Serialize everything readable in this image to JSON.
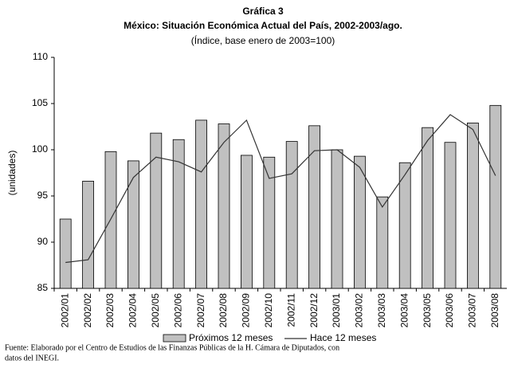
{
  "chart_data": {
    "type": "bar-line",
    "title": "Gráfica 3",
    "subtitle": "México: Situación Económica Actual del País, 2002-2003/ago.",
    "note": "(Índice, base enero de 2003=100)",
    "y_label": "(unidades)",
    "categories": [
      "2002/01",
      "2002/02",
      "2002/03",
      "2002/04",
      "2002/05",
      "2002/06",
      "2002/07",
      "2002/08",
      "2002/09",
      "2002/10",
      "2002/11",
      "2002/12",
      "2003/01",
      "2003/02",
      "2003/03",
      "2003/04",
      "2003/05",
      "2003/06",
      "2003/07",
      "2003/08"
    ],
    "series": [
      {
        "name": "Próximos 12 meses",
        "type": "bar",
        "color": "#c0c0c0",
        "values": [
          92.5,
          96.6,
          99.8,
          98.8,
          101.8,
          101.1,
          103.2,
          102.8,
          99.4,
          99.2,
          100.9,
          102.6,
          100.0,
          99.3,
          94.9,
          98.6,
          102.4,
          100.8,
          102.9,
          104.8
        ]
      },
      {
        "name": "Hace 12 meses",
        "type": "line",
        "color": "#333333",
        "values": [
          87.8,
          88.1,
          92.5,
          97.0,
          99.2,
          98.7,
          97.6,
          100.8,
          103.2,
          96.9,
          97.4,
          99.9,
          100.0,
          98.1,
          93.8,
          97.3,
          101.0,
          103.8,
          102.2,
          97.2
        ]
      }
    ],
    "ylim": [
      85,
      110
    ],
    "yticks": [
      85,
      90,
      95,
      100,
      105,
      110
    ],
    "source": [
      "Fuente: Elaborado por el Centro de Estudios de las Finanzas Públicas de la H. Cámara de Diputados, con",
      "datos del INEGI."
    ]
  }
}
